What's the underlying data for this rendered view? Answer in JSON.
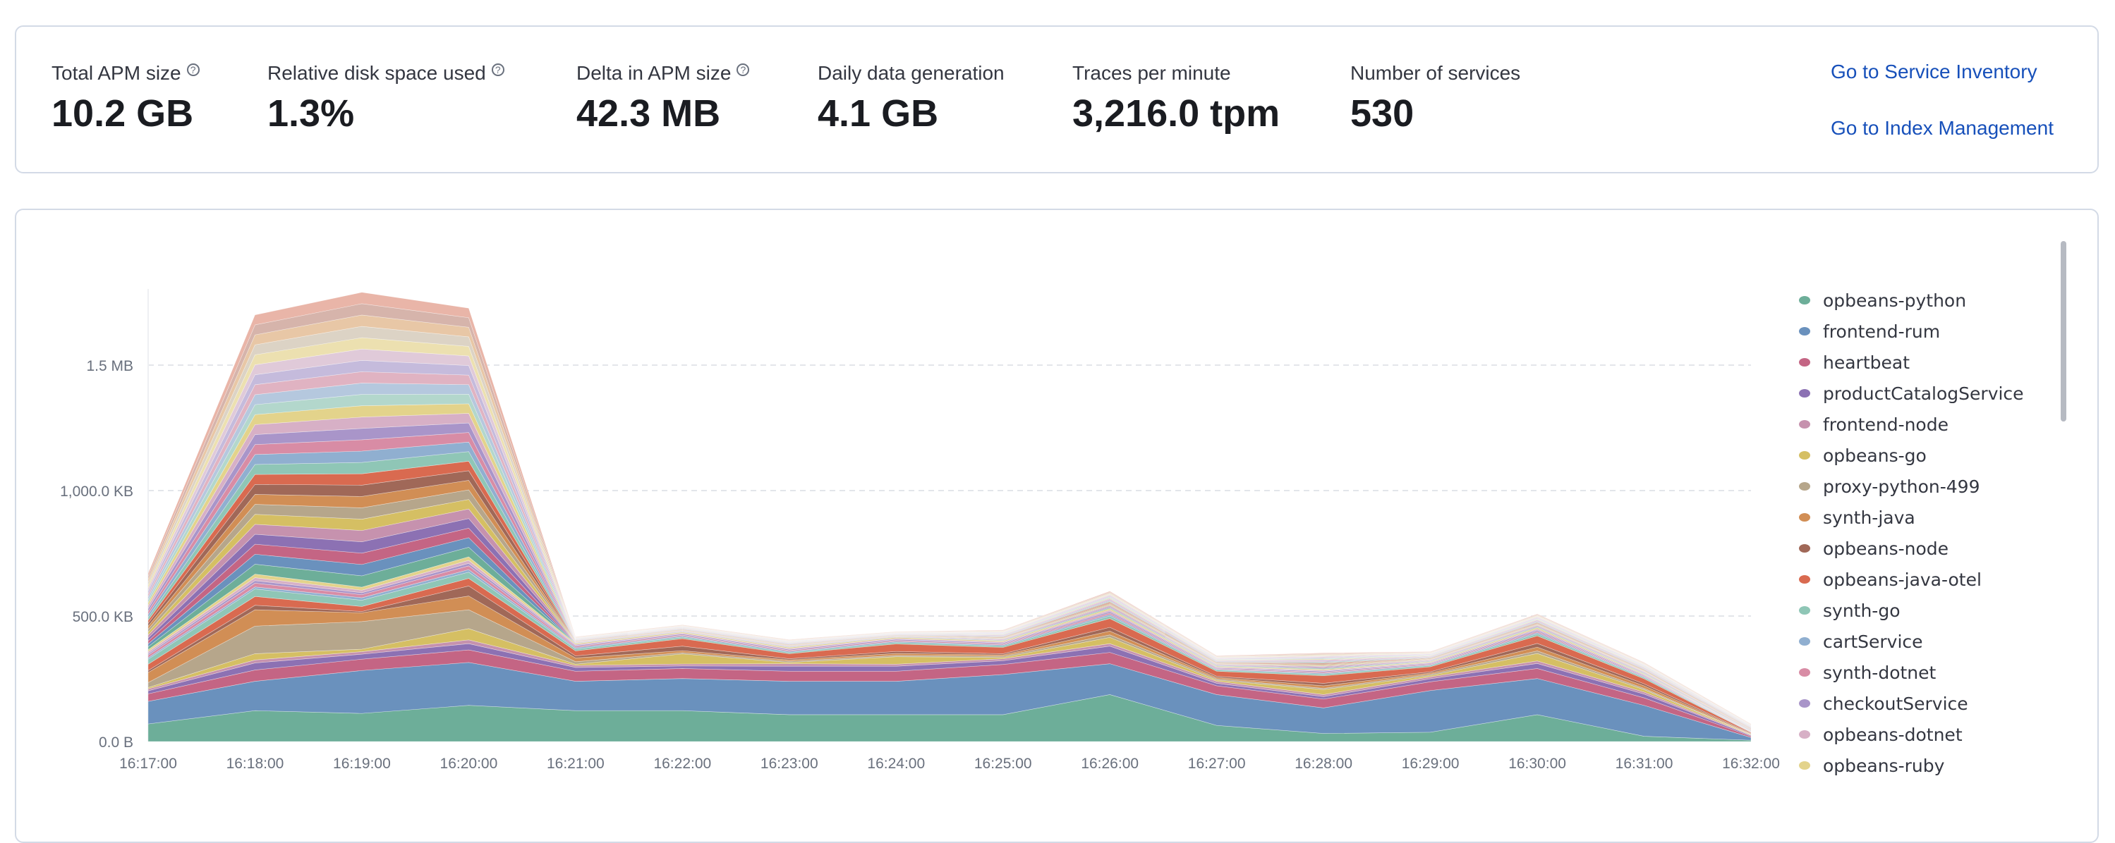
{
  "stats": [
    {
      "label": "Total APM size",
      "value": "10.2 GB",
      "help": true
    },
    {
      "label": "Relative disk space used",
      "value": "1.3%",
      "help": true
    },
    {
      "label": "Delta in APM size",
      "value": "42.3 MB",
      "help": true
    },
    {
      "label": "Daily data generation",
      "value": "4.1 GB",
      "help": false
    },
    {
      "label": "Traces per minute",
      "value": "3,216.0 tpm",
      "help": false
    },
    {
      "label": "Number of services",
      "value": "530",
      "help": false
    }
  ],
  "links": {
    "service_inventory": "Go to Service Inventory",
    "index_management": "Go to Index Management"
  },
  "chart_data": {
    "type": "area",
    "stacked": true,
    "x": [
      "16:17:00",
      "16:18:00",
      "16:19:00",
      "16:20:00",
      "16:21:00",
      "16:22:00",
      "16:23:00",
      "16:24:00",
      "16:25:00",
      "16:26:00",
      "16:27:00",
      "16:28:00",
      "16:29:00",
      "16:30:00",
      "16:31:00",
      "16:32:00"
    ],
    "y_ticks": [
      "0.0 B",
      "500.0 KB",
      "1,000.0 KB",
      "1.5 MB"
    ],
    "y_tick_values_kb": [
      0,
      500,
      1000,
      1500
    ],
    "ylim_kb": [
      0,
      1800
    ],
    "grid": "horizontal-dashed",
    "legend_position": "right",
    "totals_kb": [
      670,
      1700,
      1790,
      1727,
      417,
      465,
      406,
      438,
      444,
      599,
      342,
      353,
      358,
      508,
      315,
      70
    ],
    "series": [
      {
        "name": "opbeans-python",
        "color": "#6dae99",
        "values": [
          70,
          123,
          112,
          144,
          123,
          123,
          107,
          107,
          107,
          187,
          64,
          32,
          37,
          107,
          21,
          5
        ]
      },
      {
        "name": "frontend-rum",
        "color": "#6a91bd",
        "values": [
          90,
          117,
          171,
          171,
          117,
          128,
          133,
          133,
          160,
          123,
          123,
          102,
          166,
          144,
          123,
          11
        ]
      },
      {
        "name": "heartbeat",
        "color": "#c46584",
        "values": [
          30,
          45,
          45,
          50,
          40,
          40,
          40,
          40,
          40,
          45,
          35,
          35,
          35,
          40,
          30,
          5
        ]
      },
      {
        "name": "productCatalogService",
        "color": "#8c71b3",
        "values": [
          12,
          28,
          20,
          25,
          15,
          10,
          20,
          20,
          15,
          25,
          10,
          10,
          12,
          20,
          15,
          3
        ]
      },
      {
        "name": "frontend-node",
        "color": "#c692ae",
        "values": [
          8,
          12,
          10,
          15,
          8,
          8,
          10,
          8,
          8,
          10,
          8,
          8,
          8,
          10,
          8,
          2
        ]
      },
      {
        "name": "opbeans-go",
        "color": "#d5bf63",
        "values": [
          5,
          25,
          10,
          45,
          5,
          40,
          5,
          30,
          5,
          25,
          5,
          20,
          5,
          30,
          10,
          2
        ]
      },
      {
        "name": "proxy-python-499",
        "color": "#b6a68b",
        "values": [
          20,
          110,
          110,
          75,
          10,
          5,
          5,
          5,
          5,
          10,
          5,
          5,
          5,
          10,
          5,
          1
        ]
      },
      {
        "name": "synth-java",
        "color": "#d18e55",
        "values": [
          40,
          65,
          35,
          55,
          15,
          8,
          5,
          8,
          5,
          15,
          5,
          10,
          5,
          15,
          10,
          2
        ]
      },
      {
        "name": "opbeans-node",
        "color": "#a06858",
        "values": [
          8,
          18,
          5,
          40,
          8,
          18,
          5,
          8,
          5,
          15,
          5,
          10,
          5,
          15,
          8,
          2
        ]
      },
      {
        "name": "opbeans-java-otel",
        "color": "#d96a50",
        "values": [
          25,
          35,
          20,
          30,
          20,
          30,
          20,
          30,
          25,
          35,
          20,
          30,
          20,
          30,
          20,
          3
        ]
      },
      {
        "name": "synth-go",
        "color": "#8fc6b6",
        "values": [
          20,
          30,
          25,
          25,
          8,
          6,
          5,
          6,
          6,
          10,
          5,
          6,
          5,
          8,
          5,
          1
        ]
      },
      {
        "name": "cartService",
        "color": "#90afd0",
        "values": [
          6,
          8,
          10,
          10,
          5,
          4,
          4,
          4,
          4,
          6,
          3,
          4,
          3,
          5,
          3,
          1
        ]
      },
      {
        "name": "synth-dotnet",
        "color": "#d88ca5",
        "values": [
          10,
          15,
          12,
          15,
          5,
          4,
          4,
          4,
          4,
          6,
          3,
          4,
          3,
          5,
          3,
          1
        ]
      },
      {
        "name": "checkoutService",
        "color": "#a995c9",
        "values": [
          6,
          10,
          8,
          10,
          4,
          4,
          4,
          4,
          4,
          6,
          3,
          4,
          3,
          5,
          3,
          1
        ]
      },
      {
        "name": "opbeans-dotnet",
        "color": "#d7b0c6",
        "values": [
          8,
          12,
          10,
          12,
          4,
          4,
          4,
          4,
          4,
          6,
          3,
          4,
          3,
          5,
          3,
          1
        ]
      },
      {
        "name": "opbeans-ruby",
        "color": "#e3d38b",
        "values": [
          8,
          14,
          12,
          14,
          4,
          4,
          4,
          4,
          4,
          6,
          3,
          4,
          3,
          5,
          3,
          1
        ]
      }
    ]
  }
}
